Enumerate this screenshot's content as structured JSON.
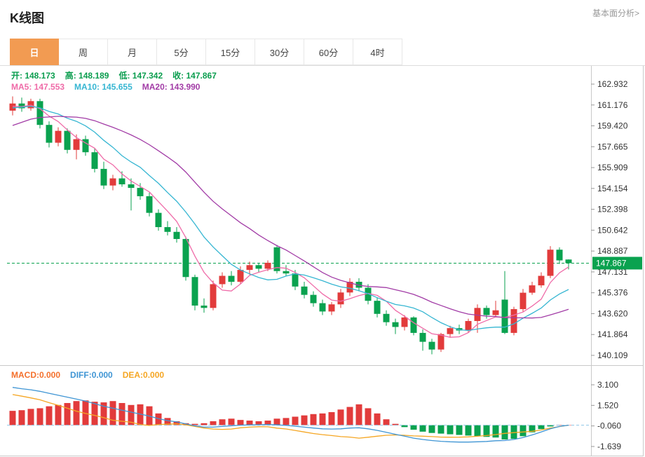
{
  "header": {
    "title": "K线图",
    "link": "基本面分析>"
  },
  "tabs": [
    {
      "name": "day",
      "label": "日",
      "active": true
    },
    {
      "name": "week",
      "label": "周",
      "active": false
    },
    {
      "name": "month",
      "label": "月",
      "active": false
    },
    {
      "name": "5min",
      "label": "5分",
      "active": false
    },
    {
      "name": "15min",
      "label": "15分",
      "active": false
    },
    {
      "name": "30min",
      "label": "30分",
      "active": false
    },
    {
      "name": "60min",
      "label": "60分",
      "active": false
    },
    {
      "name": "4hour",
      "label": "4时",
      "active": false
    }
  ],
  "overlay": {
    "ohlc_color": "#0a9d4e",
    "ohlc": [
      {
        "name": "open",
        "label": "开:",
        "value": "148.173"
      },
      {
        "name": "high",
        "label": "高:",
        "value": "148.189"
      },
      {
        "name": "low",
        "label": "低:",
        "value": "147.342"
      },
      {
        "name": "close",
        "label": "收:",
        "value": "147.867"
      }
    ],
    "ma": [
      {
        "name": "ma5",
        "label": "MA5:",
        "value": "147.553",
        "color": "#ef6ba8"
      },
      {
        "name": "ma10",
        "label": "MA10:",
        "value": "145.655",
        "color": "#36b6d2"
      },
      {
        "name": "ma20",
        "label": "MA20:",
        "value": "143.990",
        "color": "#a23ca6"
      }
    ],
    "macd": [
      {
        "name": "macd",
        "label": "MACD:",
        "value": "0.000",
        "color": "#f4702c"
      },
      {
        "name": "diff",
        "label": "DIFF:",
        "value": "0.000",
        "color": "#3f95d4"
      },
      {
        "name": "dea",
        "label": "DEA:",
        "value": "0.000",
        "color": "#f5a623"
      }
    ]
  },
  "colors": {
    "up": "#e23b3b",
    "down": "#0aa24f",
    "tab_active": "#f29b52",
    "link": "#999999",
    "axis_text": "#333333",
    "border": "#c9c9c9",
    "price_tag_bg": "#0aa24f",
    "price_line": "#0aa24f",
    "macd_zero_line": "#8fc6e8",
    "diff_line": "#3f95d4",
    "dea_line": "#f5a623"
  },
  "chart_data": {
    "type": "candlestick",
    "panels": "main(K-line with MA5/MA10/MA20) + MACD histogram with DIFF/DEA lines",
    "main": {
      "ylim": [
        140.109,
        162.932
      ],
      "y_ticks": [
        "162.932",
        "161.176",
        "159.420",
        "157.665",
        "155.909",
        "154.154",
        "152.398",
        "150.642",
        "148.887",
        "147.131",
        "145.376",
        "143.620",
        "141.864",
        "140.109"
      ],
      "last_price": "147.867",
      "ma_periods": [
        5,
        10,
        20
      ],
      "ma_seed_closes": [
        155.6,
        156.1,
        156.7,
        157.2,
        157.8,
        158.3,
        158.8,
        159.3,
        159.7,
        160.1,
        160.4,
        160.7,
        160.9,
        161.0,
        161.1,
        161.0,
        160.9,
        161.0,
        161.1
      ],
      "candles_ohlc": [
        [
          160.7,
          161.9,
          160.3,
          161.3
        ],
        [
          161.3,
          161.8,
          160.6,
          160.9
        ],
        [
          160.9,
          161.7,
          160.7,
          161.5
        ],
        [
          161.5,
          161.7,
          159.2,
          159.5
        ],
        [
          159.5,
          159.8,
          157.6,
          158.0
        ],
        [
          158.0,
          159.3,
          157.7,
          159.0
        ],
        [
          159.0,
          159.2,
          157.1,
          157.4
        ],
        [
          157.4,
          158.7,
          156.6,
          158.3
        ],
        [
          158.3,
          158.6,
          156.9,
          157.2
        ],
        [
          157.2,
          157.5,
          155.5,
          155.8
        ],
        [
          155.8,
          156.4,
          154.1,
          154.4
        ],
        [
          154.4,
          155.3,
          154.0,
          155.0
        ],
        [
          155.0,
          155.6,
          154.3,
          154.5
        ],
        [
          154.5,
          155.0,
          152.3,
          154.2
        ],
        [
          154.2,
          154.6,
          153.2,
          153.5
        ],
        [
          153.5,
          153.8,
          151.8,
          152.1
        ],
        [
          152.1,
          152.4,
          150.6,
          150.9
        ],
        [
          150.9,
          151.4,
          150.2,
          150.5
        ],
        [
          150.5,
          150.9,
          149.6,
          149.9
        ],
        [
          149.9,
          150.1,
          146.4,
          146.7
        ],
        [
          146.7,
          146.9,
          143.9,
          144.3
        ],
        [
          144.3,
          144.9,
          143.7,
          144.1
        ],
        [
          144.1,
          146.4,
          143.9,
          146.1
        ],
        [
          146.1,
          147.1,
          145.8,
          146.8
        ],
        [
          146.8,
          147.2,
          146.0,
          146.3
        ],
        [
          146.3,
          147.6,
          146.1,
          147.3
        ],
        [
          147.3,
          148.0,
          146.9,
          147.7
        ],
        [
          147.7,
          147.9,
          147.1,
          147.4
        ],
        [
          147.4,
          148.1,
          147.2,
          147.9
        ],
        [
          149.2,
          149.4,
          147.0,
          147.2
        ],
        [
          147.2,
          147.7,
          146.8,
          147.0
        ],
        [
          147.0,
          147.3,
          145.6,
          145.9
        ],
        [
          145.9,
          146.3,
          144.9,
          145.2
        ],
        [
          145.2,
          145.5,
          144.2,
          144.5
        ],
        [
          144.5,
          144.8,
          143.5,
          143.8
        ],
        [
          143.8,
          144.6,
          143.5,
          144.4
        ],
        [
          144.4,
          145.7,
          144.1,
          145.4
        ],
        [
          145.4,
          146.6,
          145.1,
          146.3
        ],
        [
          146.3,
          146.6,
          145.5,
          145.8
        ],
        [
          145.8,
          146.1,
          144.4,
          144.7
        ],
        [
          144.7,
          145.0,
          143.3,
          143.6
        ],
        [
          143.6,
          143.9,
          142.6,
          142.9
        ],
        [
          142.9,
          143.2,
          141.9,
          142.5
        ],
        [
          142.5,
          143.5,
          142.2,
          143.3
        ],
        [
          143.3,
          143.4,
          141.8,
          142.0
        ],
        [
          142.0,
          142.3,
          140.5,
          141.25
        ],
        [
          141.25,
          141.5,
          140.2,
          140.6
        ],
        [
          140.6,
          142.0,
          140.4,
          141.9
        ],
        [
          141.9,
          142.6,
          141.6,
          142.4
        ],
        [
          142.4,
          142.7,
          141.9,
          142.2
        ],
        [
          142.2,
          143.2,
          142.0,
          143.0
        ],
        [
          143.0,
          144.4,
          142.0,
          144.1
        ],
        [
          144.1,
          144.3,
          143.2,
          143.5
        ],
        [
          143.5,
          144.7,
          143.3,
          143.9
        ],
        [
          144.8,
          147.2,
          141.9,
          142.0
        ],
        [
          142.0,
          144.2,
          141.8,
          144.0
        ],
        [
          144.0,
          145.7,
          143.8,
          145.38
        ],
        [
          145.38,
          146.3,
          145.2,
          146.0
        ],
        [
          146.0,
          147.1,
          145.8,
          146.8
        ],
        [
          146.8,
          149.3,
          146.6,
          149.0
        ],
        [
          149.0,
          149.2,
          147.8,
          148.1
        ],
        [
          148.173,
          148.189,
          147.342,
          147.867
        ]
      ]
    },
    "macd": {
      "ylim": [
        -1.639,
        3.1
      ],
      "y_ticks": [
        "3.100",
        "1.520",
        "-0.060",
        "-1.639"
      ],
      "hist": [
        1.1,
        1.15,
        1.25,
        1.3,
        1.45,
        1.55,
        1.7,
        1.85,
        1.9,
        1.8,
        1.75,
        1.85,
        1.7,
        1.55,
        1.6,
        1.45,
        0.9,
        0.55,
        0.3,
        0.15,
        0.1,
        0.15,
        0.3,
        0.45,
        0.5,
        0.4,
        0.35,
        0.3,
        0.35,
        0.5,
        0.55,
        0.65,
        0.75,
        0.85,
        0.9,
        1.0,
        1.2,
        1.4,
        1.6,
        1.3,
        0.9,
        0.45,
        0.1,
        -0.15,
        -0.35,
        -0.5,
        -0.6,
        -0.65,
        -0.7,
        -0.75,
        -0.8,
        -0.85,
        -0.9,
        -0.95,
        -1.1,
        -1.05,
        -0.85,
        -0.55,
        -0.3,
        -0.1,
        0.02,
        0.0
      ],
      "diff": [
        2.9,
        2.8,
        2.72,
        2.6,
        2.45,
        2.3,
        2.15,
        2.0,
        1.85,
        1.65,
        1.45,
        1.3,
        1.15,
        1.0,
        0.85,
        0.7,
        0.5,
        0.35,
        0.25,
        0.1,
        -0.05,
        -0.15,
        -0.15,
        -0.1,
        -0.05,
        0.0,
        0.02,
        0.03,
        0.05,
        0.02,
        -0.02,
        -0.08,
        -0.15,
        -0.22,
        -0.28,
        -0.3,
        -0.28,
        -0.22,
        -0.2,
        -0.28,
        -0.4,
        -0.55,
        -0.7,
        -0.85,
        -1.0,
        -1.1,
        -1.18,
        -1.24,
        -1.28,
        -1.3,
        -1.3,
        -1.28,
        -1.25,
        -1.2,
        -1.18,
        -1.1,
        -0.95,
        -0.75,
        -0.52,
        -0.28,
        -0.1,
        0.0
      ]
    }
  }
}
